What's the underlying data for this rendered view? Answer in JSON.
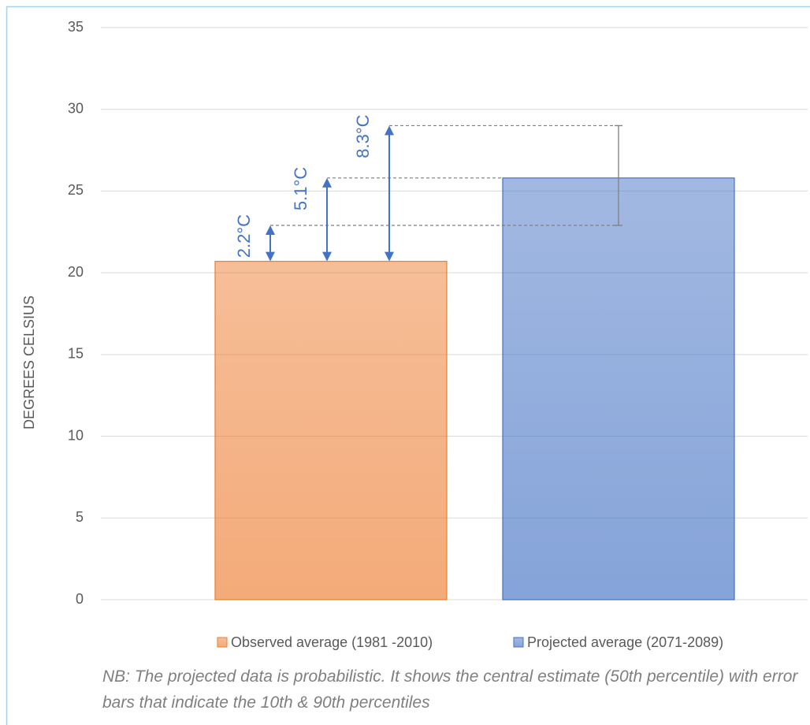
{
  "chart_data": {
    "type": "bar",
    "ylabel": "DEGREES CELSIUS",
    "categories": [
      null
    ],
    "series": [
      {
        "name": "Observed average (1981 -2010)",
        "color": "#ed7d31",
        "values": [
          20.7
        ]
      },
      {
        "name": "Projected average (2071-2089)",
        "color": "#4472c4",
        "values": [
          25.8
        ],
        "error_low": [
          22.9
        ],
        "error_high": [
          29.0
        ],
        "error_color": "#7f7f7f"
      }
    ],
    "annotations": {
      "values": [
        2.2,
        5.1,
        8.3
      ],
      "value_labels": [
        "2.2°C",
        "5.1°C",
        "8.3°C"
      ],
      "color": "#4472c4"
    },
    "ylim": [
      0,
      35
    ],
    "yticks": [
      0,
      5,
      10,
      15,
      20,
      25,
      30,
      35
    ],
    "grid": true,
    "legend": "bottom",
    "note": "NB: The projected data is probabilistic. It shows the central estimate (50th percentile) with error bars that indicate the 10th & 90th percentiles"
  }
}
